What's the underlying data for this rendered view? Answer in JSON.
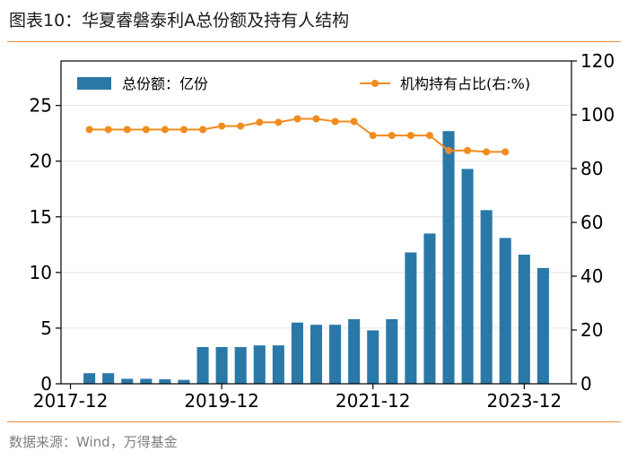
{
  "header": {
    "title": "图表10：华夏睿磐泰利A总份额及持有人结构"
  },
  "footer": {
    "source": "数据来源：Wind，万得基金"
  },
  "colors": {
    "bar": "#2a78a8",
    "line": "#f08c1e",
    "accent_rule": "#f08c3c",
    "grid": "#e4e4e4"
  },
  "chart_data": {
    "type": "bar+line",
    "title": "华夏睿磐泰利A总份额及持有人结构",
    "x_tick_labels": [
      "2017-12",
      "2019-12",
      "2021-12",
      "2023-12"
    ],
    "categories": [
      "2017-12",
      "2018-03",
      "2018-06",
      "2018-09",
      "2018-12",
      "2019-03",
      "2019-06",
      "2019-09",
      "2019-12",
      "2020-03",
      "2020-06",
      "2020-09",
      "2020-12",
      "2021-03",
      "2021-06",
      "2021-09",
      "2021-12",
      "2022-03",
      "2022-06",
      "2022-09",
      "2022-12",
      "2023-03",
      "2023-06",
      "2023-09",
      "2023-12",
      "2024-03",
      "2024-06"
    ],
    "series": [
      {
        "name": "总份额：亿份",
        "type": "bar",
        "axis": "left",
        "values": [
          null,
          0.95,
          0.95,
          0.45,
          0.45,
          0.4,
          0.35,
          3.3,
          3.3,
          3.3,
          3.45,
          3.45,
          5.5,
          5.3,
          5.3,
          5.8,
          4.8,
          5.8,
          11.8,
          13.5,
          22.7,
          19.3,
          15.6,
          13.1,
          11.6,
          10.4,
          null
        ]
      },
      {
        "name": "机构持有占比(右:%)",
        "type": "line",
        "axis": "right",
        "values": [
          null,
          94.5,
          94.5,
          94.5,
          94.5,
          94.5,
          94.5,
          94.5,
          95.8,
          95.8,
          97.2,
          97.2,
          98.5,
          98.5,
          97.5,
          97.5,
          92.3,
          92.3,
          92.3,
          92.3,
          86.7,
          86.7,
          86.2,
          86.2,
          null,
          null,
          null
        ]
      }
    ],
    "y_left": {
      "ylim": [
        0,
        29
      ],
      "ticks": [
        0,
        5,
        10,
        15,
        20,
        25
      ]
    },
    "y_right": {
      "ylim": [
        0,
        120
      ],
      "ticks": [
        0,
        20,
        40,
        60,
        80,
        100,
        120
      ]
    },
    "legend": [
      "总份额：亿份",
      "机构持有占比(右:%)"
    ],
    "legend_position": "top"
  }
}
